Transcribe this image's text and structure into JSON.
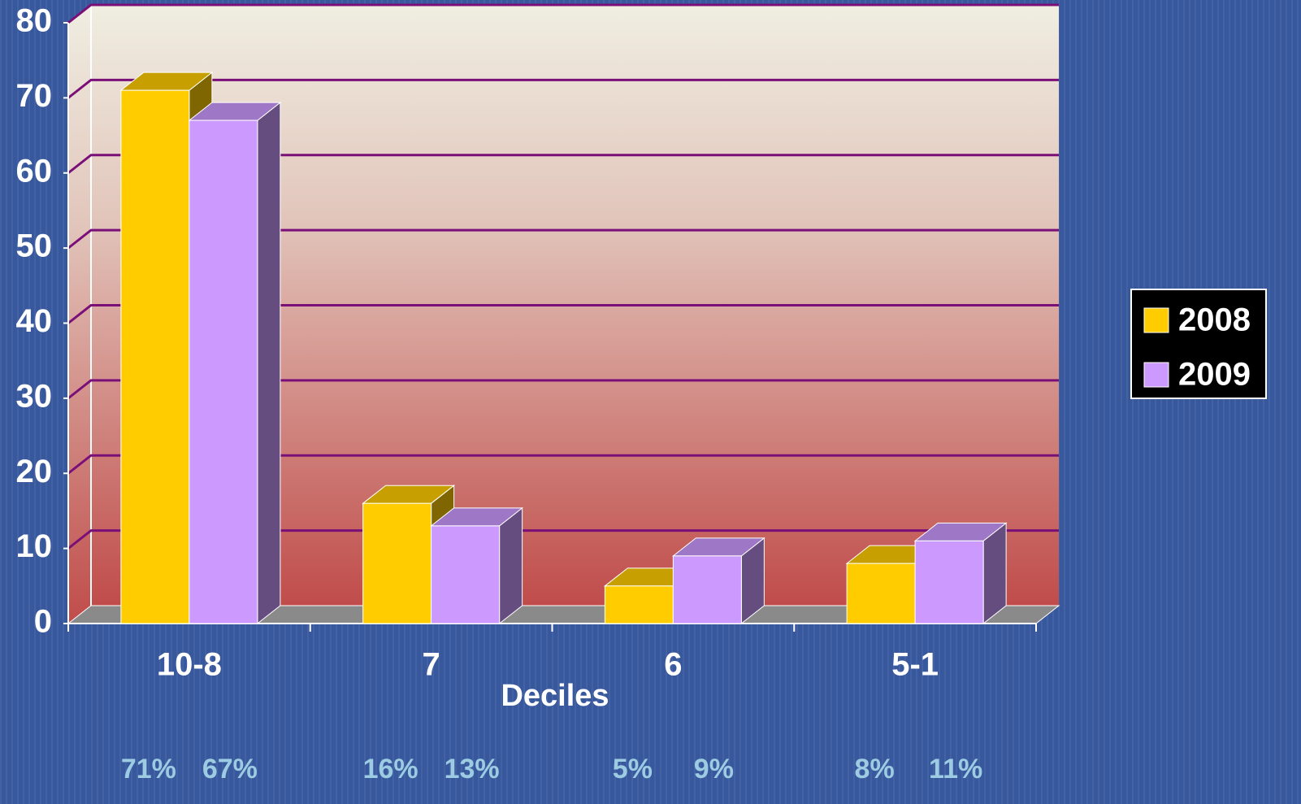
{
  "chart_data": {
    "type": "bar",
    "categories": [
      "10-8",
      "7",
      "6",
      "5-1"
    ],
    "series": [
      {
        "name": "2008",
        "color": "#ffcc00",
        "values": [
          71,
          16,
          5,
          8
        ],
        "value_labels": [
          "71%",
          "16%",
          "5%",
          "8%"
        ]
      },
      {
        "name": "2009",
        "color": "#cc99ff",
        "values": [
          67,
          13,
          9,
          11
        ],
        "value_labels": [
          "67%",
          "13%",
          "9%",
          "11%"
        ]
      }
    ],
    "x_label": "Deciles",
    "ylim": [
      0,
      80
    ],
    "yticks": [
      0,
      10,
      20,
      30,
      40,
      50,
      60,
      70,
      80
    ],
    "grid": true,
    "legend": "right"
  }
}
